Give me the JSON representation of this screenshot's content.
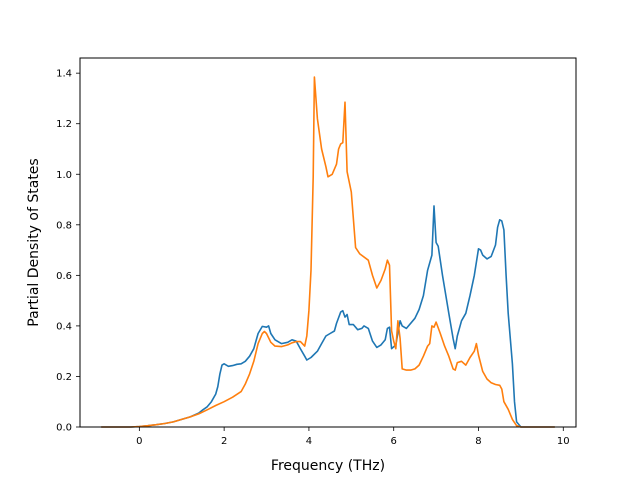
{
  "chart_data": {
    "type": "line",
    "title": "",
    "xlabel": "Frequency (THz)",
    "ylabel": "Partial Density of States",
    "xlim": [
      -1.4,
      10.3
    ],
    "ylim": [
      0,
      1.46
    ],
    "xticks": [
      0,
      2,
      4,
      6,
      8,
      10
    ],
    "yticks": [
      0.0,
      0.2,
      0.4,
      0.6,
      0.8,
      1.0,
      1.2,
      1.4
    ],
    "grid": false,
    "legend": "none",
    "series": [
      {
        "color": "#1f77b4",
        "points": [
          [
            -0.9,
            0
          ],
          [
            -0.2,
            0
          ],
          [
            0.0,
            0.002
          ],
          [
            0.2,
            0.005
          ],
          [
            0.4,
            0.009
          ],
          [
            0.6,
            0.014
          ],
          [
            0.8,
            0.02
          ],
          [
            1.0,
            0.03
          ],
          [
            1.2,
            0.04
          ],
          [
            1.4,
            0.055
          ],
          [
            1.5,
            0.068
          ],
          [
            1.6,
            0.08
          ],
          [
            1.7,
            0.1
          ],
          [
            1.8,
            0.13
          ],
          [
            1.85,
            0.16
          ],
          [
            1.9,
            0.21
          ],
          [
            1.95,
            0.245
          ],
          [
            2.0,
            0.25
          ],
          [
            2.1,
            0.24
          ],
          [
            2.2,
            0.243
          ],
          [
            2.3,
            0.248
          ],
          [
            2.4,
            0.25
          ],
          [
            2.5,
            0.26
          ],
          [
            2.6,
            0.28
          ],
          [
            2.7,
            0.31
          ],
          [
            2.8,
            0.37
          ],
          [
            2.9,
            0.398
          ],
          [
            3.0,
            0.395
          ],
          [
            3.05,
            0.4
          ],
          [
            3.1,
            0.37
          ],
          [
            3.2,
            0.345
          ],
          [
            3.35,
            0.33
          ],
          [
            3.5,
            0.335
          ],
          [
            3.6,
            0.345
          ],
          [
            3.7,
            0.34
          ],
          [
            3.8,
            0.31
          ],
          [
            3.9,
            0.28
          ],
          [
            3.95,
            0.265
          ],
          [
            4.05,
            0.275
          ],
          [
            4.2,
            0.3
          ],
          [
            4.3,
            0.33
          ],
          [
            4.4,
            0.36
          ],
          [
            4.5,
            0.37
          ],
          [
            4.6,
            0.38
          ],
          [
            4.65,
            0.41
          ],
          [
            4.75,
            0.455
          ],
          [
            4.8,
            0.46
          ],
          [
            4.85,
            0.435
          ],
          [
            4.9,
            0.445
          ],
          [
            4.95,
            0.405
          ],
          [
            5.05,
            0.405
          ],
          [
            5.15,
            0.385
          ],
          [
            5.25,
            0.39
          ],
          [
            5.3,
            0.4
          ],
          [
            5.4,
            0.39
          ],
          [
            5.5,
            0.34
          ],
          [
            5.6,
            0.315
          ],
          [
            5.7,
            0.325
          ],
          [
            5.8,
            0.345
          ],
          [
            5.85,
            0.39
          ],
          [
            5.9,
            0.395
          ],
          [
            5.95,
            0.31
          ],
          [
            6.05,
            0.325
          ],
          [
            6.15,
            0.42
          ],
          [
            6.2,
            0.4
          ],
          [
            6.3,
            0.39
          ],
          [
            6.5,
            0.43
          ],
          [
            6.6,
            0.465
          ],
          [
            6.7,
            0.52
          ],
          [
            6.8,
            0.62
          ],
          [
            6.9,
            0.68
          ],
          [
            6.95,
            0.875
          ],
          [
            7.0,
            0.73
          ],
          [
            7.05,
            0.715
          ],
          [
            7.15,
            0.6
          ],
          [
            7.2,
            0.55
          ],
          [
            7.3,
            0.45
          ],
          [
            7.4,
            0.35
          ],
          [
            7.45,
            0.31
          ],
          [
            7.5,
            0.36
          ],
          [
            7.6,
            0.42
          ],
          [
            7.7,
            0.45
          ],
          [
            7.8,
            0.52
          ],
          [
            7.9,
            0.6
          ],
          [
            8.0,
            0.705
          ],
          [
            8.05,
            0.7
          ],
          [
            8.1,
            0.68
          ],
          [
            8.2,
            0.665
          ],
          [
            8.3,
            0.675
          ],
          [
            8.4,
            0.72
          ],
          [
            8.45,
            0.79
          ],
          [
            8.5,
            0.82
          ],
          [
            8.55,
            0.815
          ],
          [
            8.6,
            0.78
          ],
          [
            8.65,
            0.6
          ],
          [
            8.7,
            0.45
          ],
          [
            8.8,
            0.25
          ],
          [
            8.85,
            0.1
          ],
          [
            8.9,
            0.02
          ],
          [
            9.0,
            0
          ],
          [
            9.8,
            0
          ]
        ]
      },
      {
        "color": "#ff7f0e",
        "points": [
          [
            -0.9,
            0
          ],
          [
            -0.2,
            0
          ],
          [
            0.0,
            0.002
          ],
          [
            0.2,
            0.005
          ],
          [
            0.4,
            0.009
          ],
          [
            0.6,
            0.014
          ],
          [
            0.8,
            0.02
          ],
          [
            1.0,
            0.03
          ],
          [
            1.2,
            0.04
          ],
          [
            1.4,
            0.052
          ],
          [
            1.6,
            0.068
          ],
          [
            1.8,
            0.085
          ],
          [
            2.0,
            0.1
          ],
          [
            2.2,
            0.118
          ],
          [
            2.4,
            0.14
          ],
          [
            2.5,
            0.17
          ],
          [
            2.6,
            0.21
          ],
          [
            2.7,
            0.26
          ],
          [
            2.8,
            0.33
          ],
          [
            2.9,
            0.37
          ],
          [
            2.95,
            0.378
          ],
          [
            3.0,
            0.37
          ],
          [
            3.1,
            0.335
          ],
          [
            3.2,
            0.32
          ],
          [
            3.35,
            0.318
          ],
          [
            3.5,
            0.325
          ],
          [
            3.6,
            0.333
          ],
          [
            3.7,
            0.338
          ],
          [
            3.8,
            0.338
          ],
          [
            3.9,
            0.32
          ],
          [
            3.95,
            0.36
          ],
          [
            4.0,
            0.46
          ],
          [
            4.05,
            0.62
          ],
          [
            4.1,
            0.99
          ],
          [
            4.13,
            1.385
          ],
          [
            4.2,
            1.22
          ],
          [
            4.3,
            1.1
          ],
          [
            4.4,
            1.03
          ],
          [
            4.45,
            0.99
          ],
          [
            4.55,
            1.0
          ],
          [
            4.65,
            1.04
          ],
          [
            4.7,
            1.1
          ],
          [
            4.75,
            1.12
          ],
          [
            4.8,
            1.125
          ],
          [
            4.85,
            1.285
          ],
          [
            4.9,
            1.01
          ],
          [
            5.0,
            0.93
          ],
          [
            5.1,
            0.71
          ],
          [
            5.2,
            0.685
          ],
          [
            5.4,
            0.66
          ],
          [
            5.5,
            0.6
          ],
          [
            5.6,
            0.55
          ],
          [
            5.7,
            0.58
          ],
          [
            5.8,
            0.625
          ],
          [
            5.85,
            0.66
          ],
          [
            5.9,
            0.64
          ],
          [
            5.95,
            0.38
          ],
          [
            6.0,
            0.34
          ],
          [
            6.05,
            0.31
          ],
          [
            6.1,
            0.42
          ],
          [
            6.15,
            0.35
          ],
          [
            6.2,
            0.23
          ],
          [
            6.3,
            0.225
          ],
          [
            6.4,
            0.225
          ],
          [
            6.5,
            0.23
          ],
          [
            6.6,
            0.245
          ],
          [
            6.7,
            0.28
          ],
          [
            6.8,
            0.32
          ],
          [
            6.85,
            0.33
          ],
          [
            6.9,
            0.4
          ],
          [
            6.95,
            0.395
          ],
          [
            7.0,
            0.415
          ],
          [
            7.1,
            0.37
          ],
          [
            7.2,
            0.32
          ],
          [
            7.3,
            0.28
          ],
          [
            7.4,
            0.23
          ],
          [
            7.45,
            0.225
          ],
          [
            7.5,
            0.255
          ],
          [
            7.6,
            0.26
          ],
          [
            7.7,
            0.245
          ],
          [
            7.8,
            0.275
          ],
          [
            7.9,
            0.3
          ],
          [
            7.95,
            0.33
          ],
          [
            8.0,
            0.285
          ],
          [
            8.1,
            0.22
          ],
          [
            8.2,
            0.19
          ],
          [
            8.3,
            0.175
          ],
          [
            8.4,
            0.168
          ],
          [
            8.5,
            0.165
          ],
          [
            8.55,
            0.15
          ],
          [
            8.6,
            0.1
          ],
          [
            8.7,
            0.07
          ],
          [
            8.8,
            0.03
          ],
          [
            8.9,
            0.005
          ],
          [
            9.0,
            0
          ],
          [
            9.8,
            0
          ]
        ]
      }
    ]
  }
}
